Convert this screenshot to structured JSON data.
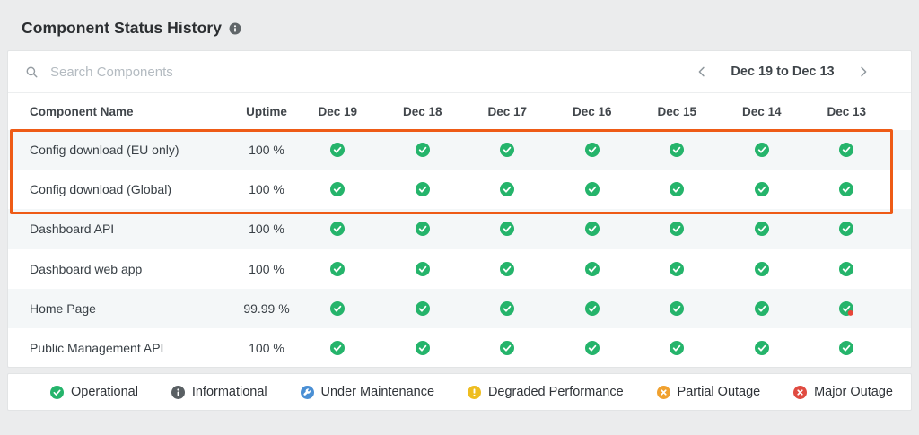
{
  "page": {
    "title": "Component Status History"
  },
  "toolbar": {
    "search_placeholder": "Search Components",
    "date_range": "Dec 19 to Dec 13"
  },
  "table": {
    "columns": [
      "Component Name",
      "Uptime",
      "Dec 19",
      "Dec 18",
      "Dec 17",
      "Dec 16",
      "Dec 15",
      "Dec 14",
      "Dec 13"
    ],
    "rows": [
      {
        "name": "Config download (EU only)",
        "uptime": "100 %",
        "highlighted": true,
        "statuses": [
          "operational",
          "operational",
          "operational",
          "operational",
          "operational",
          "operational",
          "operational"
        ]
      },
      {
        "name": "Config download (Global)",
        "uptime": "100 %",
        "highlighted": true,
        "statuses": [
          "operational",
          "operational",
          "operational",
          "operational",
          "operational",
          "operational",
          "operational"
        ]
      },
      {
        "name": "Dashboard API",
        "uptime": "100 %",
        "highlighted": false,
        "statuses": [
          "operational",
          "operational",
          "operational",
          "operational",
          "operational",
          "operational",
          "operational"
        ]
      },
      {
        "name": "Dashboard web app",
        "uptime": "100 %",
        "highlighted": false,
        "statuses": [
          "operational",
          "operational",
          "operational",
          "operational",
          "operational",
          "operational",
          "operational"
        ]
      },
      {
        "name": "Home Page",
        "uptime": "99.99 %",
        "highlighted": false,
        "statuses": [
          "operational",
          "operational",
          "operational",
          "operational",
          "operational",
          "operational",
          "operational-incident"
        ]
      },
      {
        "name": "Public Management API",
        "uptime": "100 %",
        "highlighted": false,
        "statuses": [
          "operational",
          "operational",
          "operational",
          "operational",
          "operational",
          "operational",
          "operational"
        ]
      }
    ]
  },
  "legend": [
    {
      "icon": "operational",
      "label": "Operational"
    },
    {
      "icon": "informational",
      "label": "Informational"
    },
    {
      "icon": "maintenance",
      "label": "Under Maintenance"
    },
    {
      "icon": "degraded",
      "label": "Degraded Performance"
    },
    {
      "icon": "partial",
      "label": "Partial Outage"
    },
    {
      "icon": "major",
      "label": "Major Outage"
    }
  ],
  "colors": {
    "operational": "#25b46b",
    "informational": "#595f63",
    "maintenance": "#4a8fd4",
    "degraded": "#eebd20",
    "partial": "#f0a12f",
    "major": "#e04b41",
    "incident_dot": "#e8463a",
    "highlight": "#ee5b16"
  }
}
